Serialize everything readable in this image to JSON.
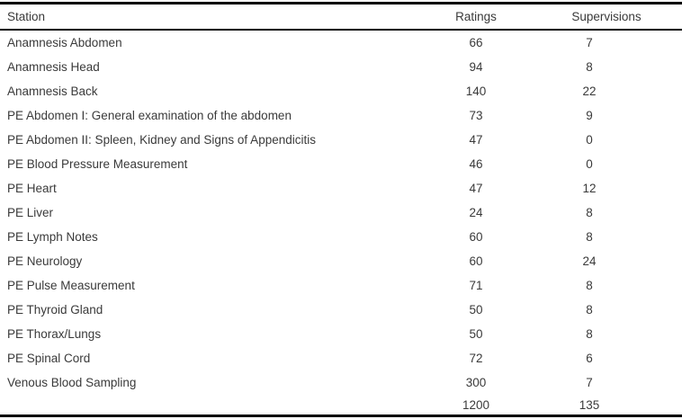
{
  "colors": {
    "background": "#ffffff",
    "text": "#3a3a3a",
    "rule": "#000000"
  },
  "table": {
    "columns": [
      "Station",
      "Ratings",
      "Supervisions"
    ],
    "rows": [
      {
        "station": "Anamnesis Abdomen",
        "ratings": "66",
        "supervisions": "7"
      },
      {
        "station": "Anamnesis Head",
        "ratings": "94",
        "supervisions": "8"
      },
      {
        "station": "Anamnesis Back",
        "ratings": "140",
        "supervisions": "22"
      },
      {
        "station": "PE Abdomen I: General examination of the abdomen",
        "ratings": "73",
        "supervisions": "9"
      },
      {
        "station": "PE Abdomen II: Spleen, Kidney and Signs of Appendicitis",
        "ratings": "47",
        "supervisions": "0"
      },
      {
        "station": "PE Blood Pressure Measurement",
        "ratings": "46",
        "supervisions": "0"
      },
      {
        "station": "PE Heart",
        "ratings": "47",
        "supervisions": "12"
      },
      {
        "station": "PE Liver",
        "ratings": "24",
        "supervisions": "8"
      },
      {
        "station": "PE Lymph Notes",
        "ratings": "60",
        "supervisions": "8"
      },
      {
        "station": "PE Neurology",
        "ratings": "60",
        "supervisions": "24"
      },
      {
        "station": "PE Pulse Measurement",
        "ratings": "71",
        "supervisions": "8"
      },
      {
        "station": "PE Thyroid Gland",
        "ratings": "50",
        "supervisions": "8"
      },
      {
        "station": "PE Thorax/Lungs",
        "ratings": "50",
        "supervisions": "8"
      },
      {
        "station": "PE Spinal Cord",
        "ratings": "72",
        "supervisions": "6"
      },
      {
        "station": "Venous Blood Sampling",
        "ratings": "300",
        "supervisions": "7"
      }
    ],
    "total": {
      "station": "",
      "ratings": "1200",
      "supervisions": "135"
    }
  }
}
